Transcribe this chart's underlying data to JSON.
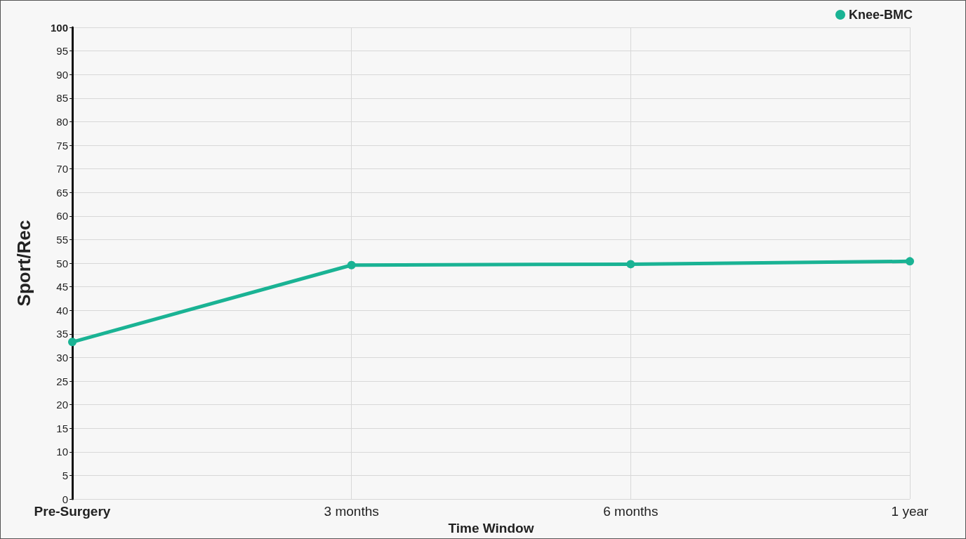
{
  "chart_data": {
    "type": "line",
    "xlabel": "Time Window",
    "ylabel": "Sport/Rec",
    "categories": [
      "Pre-Surgery",
      "3 months",
      "6 months",
      "1 year"
    ],
    "series": [
      {
        "name": "Knee-BMC",
        "color": "#1ab394",
        "values": [
          33.3,
          49.6,
          49.8,
          50.4
        ]
      }
    ],
    "ylim": [
      0,
      100
    ],
    "yticks": [
      0,
      5,
      10,
      15,
      20,
      25,
      30,
      35,
      40,
      45,
      50,
      55,
      60,
      65,
      70,
      75,
      80,
      85,
      90,
      95,
      100
    ],
    "grid": true,
    "legend": "top right",
    "marker": "circle",
    "line_style": "solid"
  }
}
